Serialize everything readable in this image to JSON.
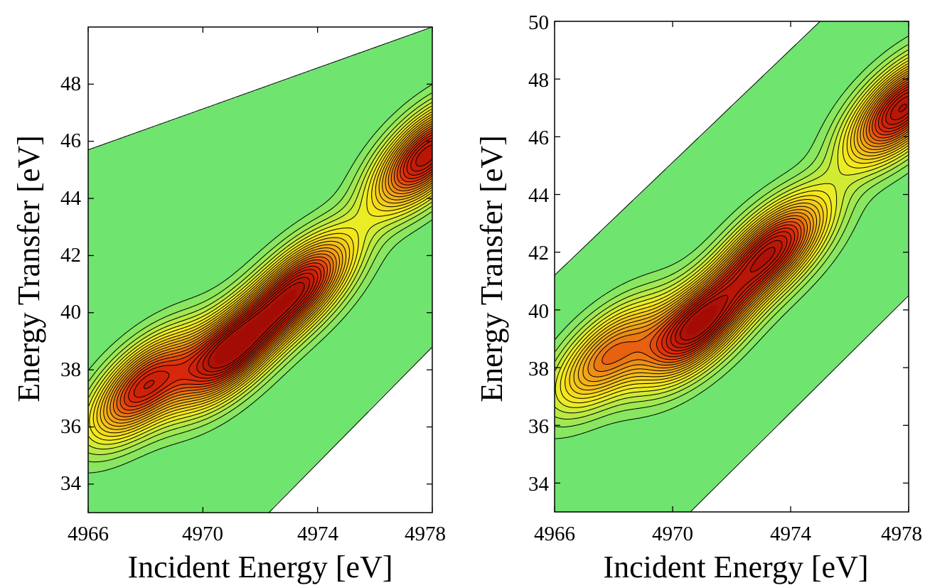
{
  "chart_data": [
    {
      "type": "contour",
      "panel": "left",
      "xlabel": "Incident Energy [eV]",
      "ylabel": "Energy Transfer [eV]",
      "xlim": [
        4966,
        4978
      ],
      "ylim": [
        33,
        50
      ],
      "xticks": [
        "4966",
        "4970",
        "4974",
        "4978"
      ],
      "yticks": [
        "34",
        "36",
        "38",
        "40",
        "42",
        "44",
        "46",
        "48"
      ],
      "data_region": {
        "upper_left_edge": [
          [
            4966,
            45.7
          ],
          [
            4978,
            50
          ]
        ],
        "lower_right_edge": [
          [
            4972.3,
            33
          ],
          [
            4978,
            38.8
          ]
        ]
      },
      "peaks": [
        {
          "x": 4967.9,
          "y": 37.4,
          "amplitude": 0.82
        },
        {
          "x": 4970.9,
          "y": 38.6,
          "amplitude": 0.95
        },
        {
          "x": 4973.4,
          "y": 40.9,
          "amplitude": 0.88
        },
        {
          "x": 4977.8,
          "y": 45.5,
          "amplitude": 0.95
        }
      ],
      "colormap": [
        "#6fe46f",
        "#f6ee1e",
        "#f2a417",
        "#dd2a0b",
        "#a30c05"
      ]
    },
    {
      "type": "contour",
      "panel": "right",
      "xlabel": "Incident Energy [eV]",
      "ylabel": "Energy Transfer [eV]",
      "xlim": [
        4966,
        4978
      ],
      "ylim": [
        33,
        50
      ],
      "xticks": [
        "4966",
        "4970",
        "4974",
        "4978"
      ],
      "yticks": [
        "34",
        "36",
        "38",
        "40",
        "42",
        "44",
        "46",
        "48",
        "50"
      ],
      "data_region": {
        "upper_left_edge": [
          [
            4966,
            41.2
          ],
          [
            4975,
            50
          ]
        ],
        "lower_right_edge": [
          [
            4970.6,
            33
          ],
          [
            4978,
            40.5
          ]
        ]
      },
      "peaks": [
        {
          "x": 4967.8,
          "y": 38.4,
          "amplitude": 0.62
        },
        {
          "x": 4970.8,
          "y": 39.4,
          "amplitude": 0.96
        },
        {
          "x": 4973.4,
          "y": 42.1,
          "amplitude": 0.9
        },
        {
          "x": 4977.8,
          "y": 47.0,
          "amplitude": 0.96
        }
      ],
      "colormap": [
        "#6fe46f",
        "#f6ee1e",
        "#f2a417",
        "#dd2a0b",
        "#a30c05"
      ]
    }
  ]
}
